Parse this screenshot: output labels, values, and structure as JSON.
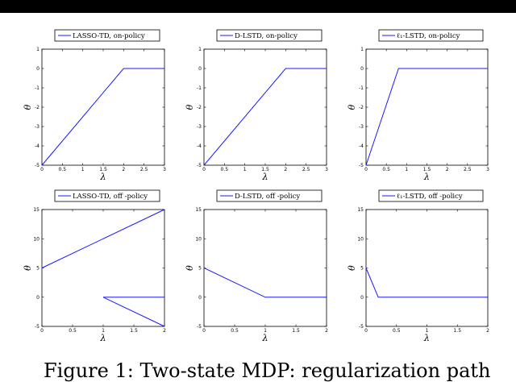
{
  "caption": "Figure 1: Two-state MDP: regularization path",
  "colors": {
    "line": "#1a1aff",
    "axis": "#000000",
    "header": "#000000"
  },
  "chart_data": [
    {
      "type": "line",
      "legend": "LASSO-TD, on-policy",
      "xlabel": "λ",
      "ylabel": "θ",
      "xlim": [
        0,
        3
      ],
      "ylim": [
        -5,
        1
      ],
      "xticks": [
        "0",
        "0.5",
        "1",
        "1.5",
        "2",
        "2.5",
        "3"
      ],
      "yticks": [
        "-5",
        "-4",
        "-3",
        "-2",
        "-1",
        "0",
        "1"
      ],
      "series": [
        {
          "x": [
            0,
            2,
            3
          ],
          "y": [
            -5,
            0,
            0
          ]
        }
      ]
    },
    {
      "type": "line",
      "legend": "D-LSTD, on-policy",
      "xlabel": "λ",
      "ylabel": "θ",
      "xlim": [
        0,
        3
      ],
      "ylim": [
        -5,
        1
      ],
      "xticks": [
        "0",
        "0.5",
        "1",
        "1.5",
        "2",
        "2.5",
        "3"
      ],
      "yticks": [
        "-5",
        "-4",
        "-3",
        "-2",
        "-1",
        "0",
        "1"
      ],
      "series": [
        {
          "x": [
            0,
            2,
            3
          ],
          "y": [
            -5,
            0,
            0
          ]
        }
      ]
    },
    {
      "type": "line",
      "legend": "ℓ₁-LSTD, on-policy",
      "xlabel": "λ",
      "ylabel": "θ",
      "xlim": [
        0,
        3
      ],
      "ylim": [
        -5,
        1
      ],
      "xticks": [
        "0",
        "0.5",
        "1",
        "1.5",
        "2",
        "2.5",
        "3"
      ],
      "yticks": [
        "-5",
        "-4",
        "-3",
        "-2",
        "-1",
        "0",
        "1"
      ],
      "series": [
        {
          "x": [
            0,
            0.8,
            3
          ],
          "y": [
            -5,
            0,
            0
          ]
        }
      ]
    },
    {
      "type": "line",
      "legend": "LASSO-TD, off -policy",
      "xlabel": "λ",
      "ylabel": "θ",
      "xlim": [
        0,
        2
      ],
      "ylim": [
        -5,
        15
      ],
      "xticks": [
        "0",
        "0.5",
        "1",
        "1.5",
        "2"
      ],
      "yticks": [
        "-5",
        "0",
        "5",
        "10",
        "15"
      ],
      "series": [
        {
          "x": [
            0,
            2
          ],
          "y": [
            5,
            15
          ]
        },
        {
          "x": [
            1,
            2
          ],
          "y": [
            0,
            0
          ]
        },
        {
          "x": [
            1,
            2
          ],
          "y": [
            0,
            -5
          ]
        }
      ]
    },
    {
      "type": "line",
      "legend": "D-LSTD, off -policy",
      "xlabel": "λ",
      "ylabel": "θ",
      "xlim": [
        0,
        2
      ],
      "ylim": [
        -5,
        15
      ],
      "xticks": [
        "0",
        "0.5",
        "1",
        "1.5",
        "2"
      ],
      "yticks": [
        "-5",
        "0",
        "5",
        "10",
        "15"
      ],
      "series": [
        {
          "x": [
            0,
            1,
            2
          ],
          "y": [
            5,
            0,
            0
          ]
        }
      ]
    },
    {
      "type": "line",
      "legend": "ℓ₁-LSTD, off -policy",
      "xlabel": "λ",
      "ylabel": "θ",
      "xlim": [
        0,
        2
      ],
      "ylim": [
        -5,
        15
      ],
      "xticks": [
        "0",
        "0.5",
        "1",
        "1.5",
        "2"
      ],
      "yticks": [
        "-5",
        "0",
        "5",
        "10",
        "15"
      ],
      "series": [
        {
          "x": [
            0,
            0.2,
            2
          ],
          "y": [
            5,
            0,
            0
          ]
        }
      ]
    }
  ]
}
